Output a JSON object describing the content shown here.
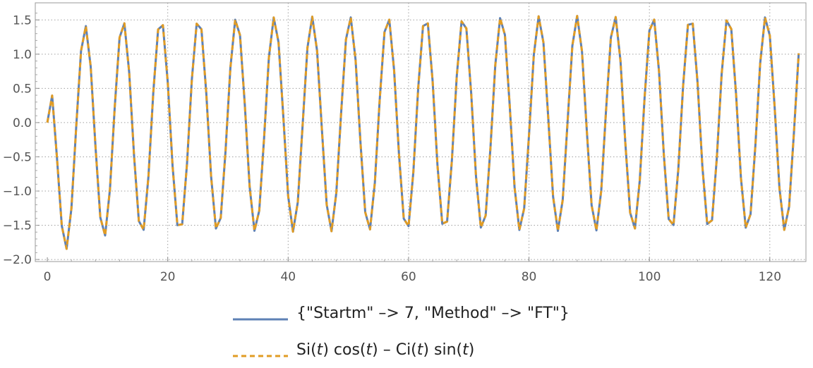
{
  "chart_data": {
    "type": "line",
    "xlim": [
      -2,
      126
    ],
    "ylim": [
      -2.03,
      1.75
    ],
    "x_ticks": [
      0,
      20,
      40,
      60,
      80,
      100,
      120
    ],
    "x_tick_labels": [
      "0",
      "20",
      "40",
      "60",
      "80",
      "100",
      "120"
    ],
    "y_ticks": [
      -2.0,
      -1.5,
      -1.0,
      -0.5,
      0.0,
      0.5,
      1.0,
      1.5
    ],
    "y_tick_labels": [
      "−2.0",
      "−1.5",
      "−1.0",
      "−0.5",
      "0.0",
      "0.5",
      "1.0",
      "1.5"
    ],
    "grid": true,
    "legend_position": "bottom",
    "x_range": [
      0,
      125
    ],
    "sample_step": 0.8,
    "series": [
      {
        "name": "{\"Startm\" –> 7, \"Method\" –> \"FT\"}",
        "function": "Si(t) cos(t) − Ci(t) sin(t)",
        "color": "#5E81B5",
        "style": "solid"
      },
      {
        "name": "Si(t) cos(t) – Ci(t) sin(t)",
        "function": "Si(t) cos(t) − Ci(t) sin(t)",
        "color": "#E19C24",
        "style": "dashed"
      }
    ]
  },
  "legend": {
    "item1": "{\"Startm\" –> 7, \"Method\" –> \"FT\"}",
    "item2_parts": [
      "Si(",
      "t",
      ") cos(",
      "t",
      ") – Ci(",
      "t",
      ") sin(",
      "t",
      ")"
    ]
  }
}
